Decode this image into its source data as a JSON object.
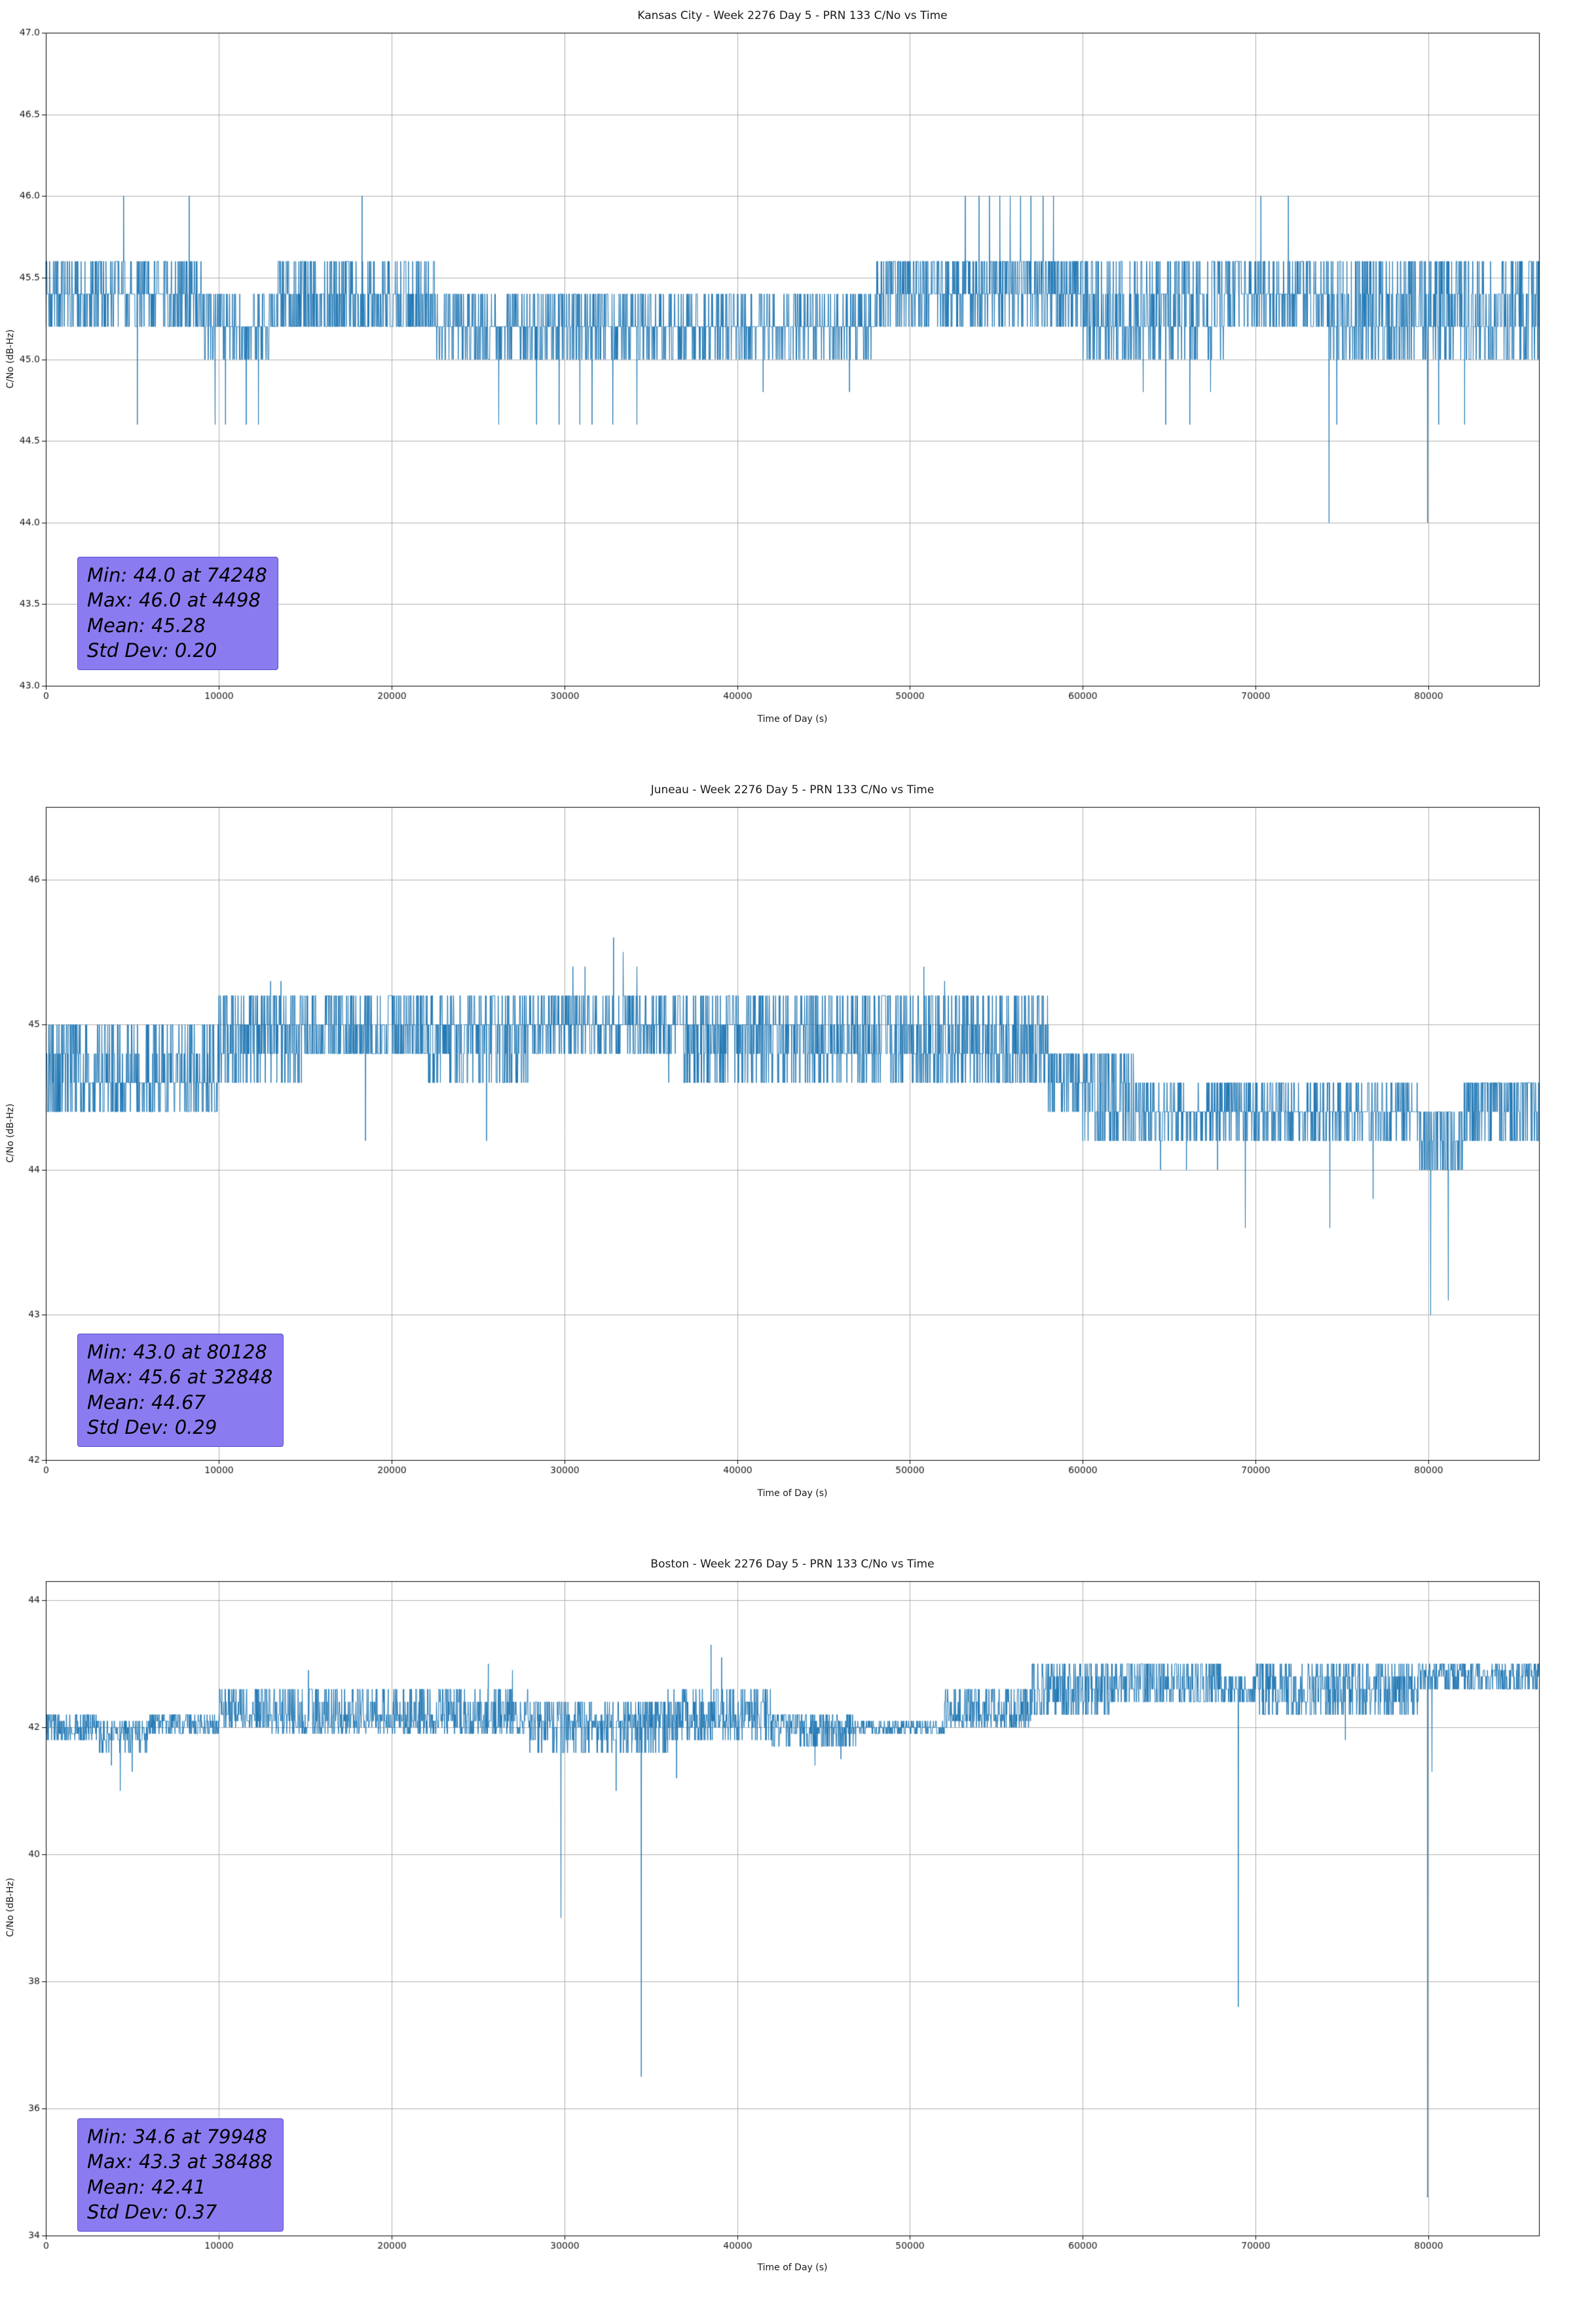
{
  "figure": {
    "bg": "#ffffff",
    "line_color": "#1f77b4",
    "grid_color": "#b0b0b0",
    "spine_color": "#000000",
    "annotation_bg": "#8a7cf0"
  },
  "chart_data": [
    {
      "type": "line",
      "title": "Kansas City - Week 2276 Day 5 - PRN 133 C/No vs Time",
      "xlabel": "Time of Day (s)",
      "ylabel": "C/No (dB-Hz)",
      "xlim": [
        0,
        86400
      ],
      "ylim": [
        43.0,
        47.0
      ],
      "xticks": [
        0,
        10000,
        20000,
        30000,
        40000,
        50000,
        60000,
        70000,
        80000
      ],
      "xtick_labels": [
        "0",
        "10000",
        "20000",
        "30000",
        "40000",
        "50000",
        "60000",
        "70000",
        "80000"
      ],
      "yticks": [
        43.0,
        43.5,
        44.0,
        44.5,
        45.0,
        45.5,
        46.0,
        46.5,
        47.0
      ],
      "ytick_labels": [
        "43.0",
        "43.5",
        "44.0",
        "44.5",
        "45.0",
        "45.5",
        "46.0",
        "46.5",
        "47.0"
      ],
      "grid": true,
      "legend": null,
      "stats": {
        "min": 44.0,
        "min_time": 74248,
        "max": 46.0,
        "max_time": 4498,
        "mean": 45.28,
        "std_dev": 0.2
      },
      "annotation_lines": [
        "Min: 44.0 at 74248",
        "Max: 46.0 at 4498",
        "Mean: 45.28",
        "Std Dev: 0.20"
      ],
      "sample_interval_s": 15,
      "segments": [
        [
          0,
          9000,
          [
            45.6,
            45.4,
            45.4,
            45.2
          ]
        ],
        [
          9000,
          13000,
          [
            45.4,
            45.2,
            45.0,
            45.2
          ]
        ],
        [
          13000,
          22500,
          [
            45.6,
            45.4,
            45.2,
            45.4,
            45.2
          ]
        ],
        [
          22500,
          28000,
          [
            45.4,
            45.2,
            45.0,
            45.2
          ]
        ],
        [
          28000,
          35000,
          [
            45.4,
            45.2,
            45.0,
            45.2
          ]
        ],
        [
          35000,
          48000,
          [
            45.4,
            45.2,
            45.0,
            45.2,
            45.2
          ]
        ],
        [
          48000,
          60000,
          [
            45.6,
            45.4,
            45.6,
            45.4,
            45.2
          ]
        ],
        [
          60000,
          68500,
          [
            45.6,
            45.4,
            45.2,
            45.2,
            45.0
          ]
        ],
        [
          68500,
          74000,
          [
            45.6,
            45.4,
            45.2,
            45.4
          ]
        ],
        [
          74000,
          86401,
          [
            45.6,
            45.4,
            45.2,
            45.2,
            45.0
          ]
        ]
      ],
      "spikes": [
        [
          4498,
          46.0
        ],
        [
          5300,
          44.6
        ],
        [
          8300,
          46.0
        ],
        [
          9800,
          44.6
        ],
        [
          10400,
          44.6
        ],
        [
          11600,
          44.6
        ],
        [
          12300,
          44.6
        ],
        [
          18300,
          46.0
        ],
        [
          26200,
          44.6
        ],
        [
          28400,
          44.6
        ],
        [
          29700,
          44.6
        ],
        [
          30900,
          44.6
        ],
        [
          31600,
          44.6
        ],
        [
          32800,
          44.6
        ],
        [
          34200,
          44.6
        ],
        [
          41500,
          44.8
        ],
        [
          46500,
          44.8
        ],
        [
          53200,
          46.0
        ],
        [
          54000,
          46.0
        ],
        [
          54600,
          46.0
        ],
        [
          55200,
          46.0
        ],
        [
          55800,
          46.0
        ],
        [
          56400,
          46.0
        ],
        [
          57000,
          46.0
        ],
        [
          57700,
          46.0
        ],
        [
          58300,
          46.0
        ],
        [
          63500,
          44.8
        ],
        [
          64800,
          44.6
        ],
        [
          66200,
          44.6
        ],
        [
          67400,
          44.8
        ],
        [
          70300,
          46.0
        ],
        [
          71900,
          46.0
        ],
        [
          74248,
          44.0
        ],
        [
          74700,
          44.6
        ],
        [
          79950,
          44.0
        ],
        [
          80600,
          44.6
        ],
        [
          82100,
          44.6
        ]
      ]
    },
    {
      "type": "line",
      "title": "Juneau - Week 2276 Day 5 - PRN 133 C/No vs Time",
      "xlabel": "Time of Day (s)",
      "ylabel": "C/No (dB-Hz)",
      "xlim": [
        0,
        86400
      ],
      "ylim": [
        42.0,
        46.5
      ],
      "xticks": [
        0,
        10000,
        20000,
        30000,
        40000,
        50000,
        60000,
        70000,
        80000
      ],
      "xtick_labels": [
        "0",
        "10000",
        "20000",
        "30000",
        "40000",
        "50000",
        "60000",
        "70000",
        "80000"
      ],
      "yticks": [
        42,
        43,
        44,
        45,
        46
      ],
      "ytick_labels": [
        "42",
        "43",
        "44",
        "45",
        "46"
      ],
      "grid": true,
      "legend": null,
      "stats": {
        "min": 43.0,
        "min_time": 80128,
        "max": 45.6,
        "max_time": 32848,
        "mean": 44.67,
        "std_dev": 0.29
      },
      "annotation_lines": [
        "Min: 43.0 at 80128",
        "Max: 45.6 at 32848",
        "Mean: 44.67",
        "Std Dev: 0.29"
      ],
      "sample_interval_s": 15,
      "segments": [
        [
          0,
          2000,
          [
            44.6,
            44.4,
            44.8,
            45.0
          ]
        ],
        [
          2000,
          10000,
          [
            44.8,
            44.6,
            44.4,
            45.0,
            44.6
          ]
        ],
        [
          10000,
          15000,
          [
            45.0,
            44.8,
            45.2,
            44.6,
            45.0
          ]
        ],
        [
          15000,
          22000,
          [
            45.0,
            44.8,
            45.2,
            44.8
          ]
        ],
        [
          22000,
          28000,
          [
            45.0,
            44.8,
            45.2,
            45.0,
            44.6
          ]
        ],
        [
          28000,
          36000,
          [
            45.2,
            45.0,
            44.8,
            45.0
          ]
        ],
        [
          36000,
          44000,
          [
            45.0,
            44.8,
            45.2,
            44.6,
            45.0
          ]
        ],
        [
          44000,
          58000,
          [
            45.0,
            44.8,
            44.6,
            45.2,
            44.8
          ]
        ],
        [
          58000,
          60000,
          [
            44.8,
            44.6,
            44.4
          ]
        ],
        [
          60000,
          63000,
          [
            44.6,
            44.4,
            44.8,
            44.2
          ]
        ],
        [
          63000,
          70000,
          [
            44.4,
            44.2,
            44.6,
            44.4
          ]
        ],
        [
          70000,
          79500,
          [
            44.4,
            44.2,
            44.6,
            44.4
          ]
        ],
        [
          79500,
          82000,
          [
            44.4,
            44.2,
            44.0,
            44.4
          ]
        ],
        [
          82000,
          86401,
          [
            44.6,
            44.4,
            44.2,
            44.6
          ]
        ]
      ],
      "spikes": [
        [
          13000,
          45.3
        ],
        [
          13600,
          45.3
        ],
        [
          18500,
          44.2
        ],
        [
          25500,
          44.2
        ],
        [
          30500,
          45.4
        ],
        [
          31200,
          45.4
        ],
        [
          32848,
          45.6
        ],
        [
          33400,
          45.5
        ],
        [
          34200,
          45.4
        ],
        [
          50800,
          45.4
        ],
        [
          52000,
          45.3
        ],
        [
          64500,
          44.0
        ],
        [
          66000,
          44.0
        ],
        [
          67800,
          44.0
        ],
        [
          69400,
          43.6
        ],
        [
          74300,
          43.6
        ],
        [
          76800,
          43.8
        ],
        [
          80128,
          43.0
        ],
        [
          81150,
          43.1
        ]
      ]
    },
    {
      "type": "line",
      "title": "Boston - Week 2276 Day 5 - PRN 133 C/No vs Time",
      "xlabel": "Time of Day (s)",
      "ylabel": "C/No (dB-Hz)",
      "xlim": [
        0,
        86400
      ],
      "ylim": [
        34.0,
        44.3
      ],
      "xticks": [
        0,
        10000,
        20000,
        30000,
        40000,
        50000,
        60000,
        70000,
        80000
      ],
      "xtick_labels": [
        "0",
        "10000",
        "20000",
        "30000",
        "40000",
        "50000",
        "60000",
        "70000",
        "80000"
      ],
      "yticks": [
        34,
        36,
        38,
        40,
        42,
        44
      ],
      "ytick_labels": [
        "34",
        "36",
        "38",
        "40",
        "42",
        "44"
      ],
      "grid": true,
      "legend": null,
      "stats": {
        "min": 34.6,
        "min_time": 79948,
        "max": 43.3,
        "max_time": 38488,
        "mean": 42.41,
        "std_dev": 0.37
      },
      "annotation_lines": [
        "Min: 34.6 at 79948",
        "Max: 43.3 at 38488",
        "Mean: 42.41",
        "Std Dev: 0.37"
      ],
      "sample_interval_s": 15,
      "segments": [
        [
          0,
          3000,
          [
            42.0,
            41.9,
            42.1,
            41.8,
            42.2
          ]
        ],
        [
          3000,
          6000,
          [
            41.9,
            41.8,
            42.0,
            41.6,
            42.1
          ]
        ],
        [
          6000,
          10000,
          [
            42.0,
            42.1,
            41.9,
            42.2
          ]
        ],
        [
          10000,
          13000,
          [
            42.1,
            42.2,
            42.0,
            42.4,
            42.6
          ]
        ],
        [
          13000,
          20000,
          [
            42.0,
            42.2,
            41.9,
            42.4,
            42.1,
            42.6
          ]
        ],
        [
          20000,
          28000,
          [
            42.1,
            42.0,
            42.2,
            42.4,
            41.9,
            42.6
          ]
        ],
        [
          28000,
          36000,
          [
            42.0,
            41.8,
            42.2,
            41.6,
            42.1,
            42.4
          ]
        ],
        [
          36000,
          42000,
          [
            42.1,
            42.0,
            42.2,
            41.8,
            42.4,
            42.6
          ]
        ],
        [
          42000,
          47000,
          [
            42.0,
            41.9,
            42.1,
            41.7,
            42.2
          ]
        ],
        [
          47000,
          52000,
          [
            42.0,
            42.0,
            42.1,
            41.9
          ]
        ],
        [
          52000,
          57000,
          [
            42.1,
            42.2,
            42.0,
            42.4,
            42.6
          ]
        ],
        [
          57000,
          62000,
          [
            42.6,
            42.8,
            42.4,
            43.0,
            42.2
          ]
        ],
        [
          62000,
          68000,
          [
            42.8,
            42.6,
            43.0,
            42.4
          ]
        ],
        [
          68000,
          70000,
          [
            42.6,
            42.4,
            42.8
          ]
        ],
        [
          70000,
          79500,
          [
            42.8,
            42.6,
            43.0,
            42.4,
            42.2
          ]
        ],
        [
          79500,
          86401,
          [
            42.8,
            42.6,
            43.0,
            42.9
          ]
        ]
      ],
      "spikes": [
        [
          3800,
          41.4
        ],
        [
          4300,
          41.0
        ],
        [
          5000,
          41.3
        ],
        [
          15200,
          42.9
        ],
        [
          25600,
          43.0
        ],
        [
          27000,
          42.9
        ],
        [
          29800,
          39.0
        ],
        [
          33000,
          41.0
        ],
        [
          34450,
          36.5
        ],
        [
          36500,
          41.2
        ],
        [
          38488,
          43.3
        ],
        [
          39100,
          43.1
        ],
        [
          44500,
          41.4
        ],
        [
          46000,
          41.5
        ],
        [
          69000,
          37.6
        ],
        [
          75200,
          41.8
        ],
        [
          79948,
          34.6
        ],
        [
          80200,
          41.3
        ]
      ]
    }
  ]
}
